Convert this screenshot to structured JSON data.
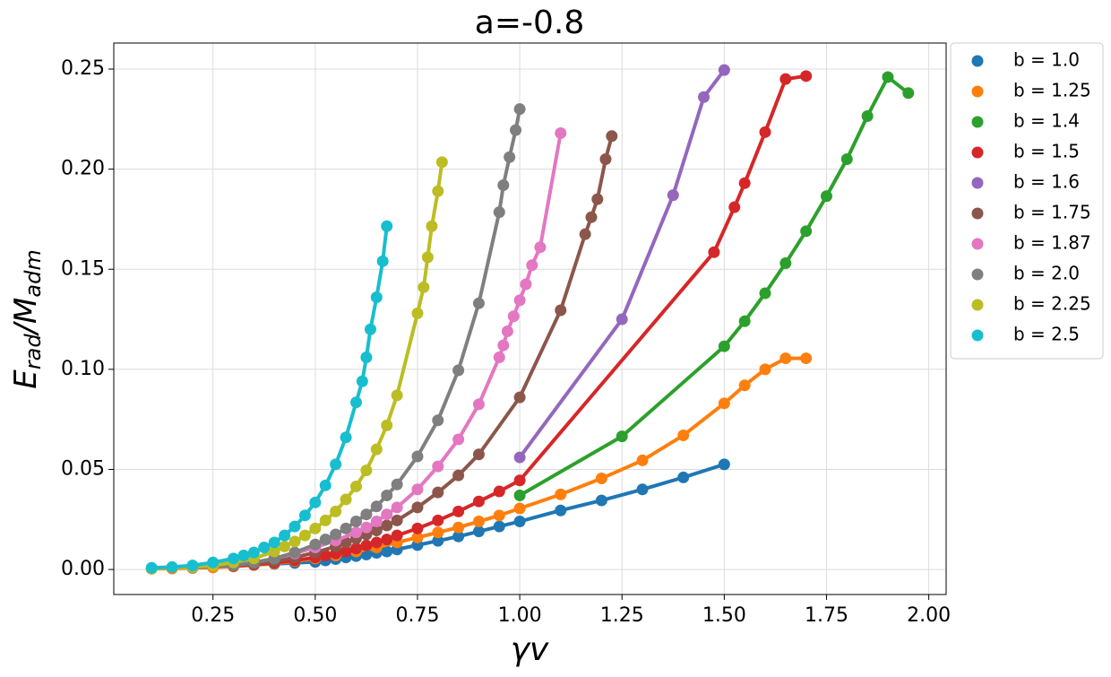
{
  "chart_data": {
    "type": "line",
    "title": "a=-0.8",
    "xlabel": "γv",
    "ylabel": [
      "E",
      "rad",
      "/M",
      "adm"
    ],
    "xlim": [
      0.0075,
      2.0425
    ],
    "ylim": [
      -0.0125,
      0.263
    ],
    "xticks": [
      0.25,
      {
        "value": 0.5,
        "label": "0.50"
      },
      0.75,
      {
        "value": 1.0,
        "label": "1.00"
      },
      1.25,
      {
        "value": 1.5,
        "label": "1.50"
      },
      1.75,
      {
        "value": 2.0,
        "label": "2.00"
      }
    ],
    "yticks": [
      {
        "value": 0,
        "label": "0.00"
      },
      0.05,
      {
        "value": 0.1,
        "label": "0.10"
      },
      0.15,
      {
        "value": 0.2,
        "label": "0.20"
      },
      0.25
    ],
    "grid": true,
    "legend": "outside-upper-right",
    "series": [
      {
        "name": "b = 1.0",
        "color": "#1f77b4",
        "x": [
          0.1,
          0.15,
          0.2,
          0.25,
          0.3,
          0.35,
          0.4,
          0.45,
          0.5,
          0.525,
          0.55,
          0.575,
          0.6,
          0.625,
          0.65,
          0.675,
          0.7,
          0.75,
          0.8,
          0.85,
          0.9,
          0.95,
          1.0,
          1.1,
          1.2,
          1.3,
          1.4,
          1.5
        ],
        "values": [
          0.0005,
          0.0008,
          0.0012,
          0.0016,
          0.002,
          0.0024,
          0.0028,
          0.0033,
          0.0038,
          0.0045,
          0.0052,
          0.006,
          0.0067,
          0.0075,
          0.0083,
          0.009,
          0.01,
          0.0122,
          0.0143,
          0.0165,
          0.019,
          0.0215,
          0.024,
          0.0295,
          0.0345,
          0.04,
          0.046,
          0.0525
        ]
      },
      {
        "name": "b = 1.25",
        "color": "#ff7f0e",
        "x": [
          0.1,
          0.15,
          0.2,
          0.25,
          0.3,
          0.35,
          0.4,
          0.45,
          0.5,
          0.55,
          0.6,
          0.65,
          0.7,
          0.75,
          0.8,
          0.85,
          0.9,
          0.95,
          1.0,
          1.1,
          1.2,
          1.3,
          1.4,
          1.5,
          1.55,
          1.6,
          1.65,
          1.7
        ],
        "values": [
          0.0003,
          0.0005,
          0.0007,
          0.001,
          0.0015,
          0.0022,
          0.003,
          0.0042,
          0.0055,
          0.007,
          0.009,
          0.011,
          0.0135,
          0.016,
          0.0185,
          0.021,
          0.024,
          0.027,
          0.0305,
          0.0375,
          0.0455,
          0.0545,
          0.067,
          0.083,
          0.092,
          0.1,
          0.1055,
          0.1055
        ]
      },
      {
        "name": "b = 1.4",
        "color": "#2ca02c",
        "x": [
          1.0,
          1.25,
          1.5,
          1.55,
          1.6,
          1.65,
          1.7,
          1.75,
          1.8,
          1.85,
          1.9,
          1.95
        ],
        "values": [
          0.037,
          0.0665,
          0.1115,
          0.124,
          0.138,
          0.153,
          0.169,
          0.1865,
          0.205,
          0.2265,
          0.246,
          0.238
        ]
      },
      {
        "name": "b = 1.5",
        "color": "#d62728",
        "x": [
          0.3,
          0.35,
          0.4,
          0.45,
          0.5,
          0.525,
          0.55,
          0.575,
          0.6,
          0.625,
          0.65,
          0.675,
          0.7,
          0.75,
          0.8,
          0.85,
          0.9,
          0.95,
          1.0,
          1.475,
          1.525,
          1.55,
          1.6,
          1.65,
          1.7
        ],
        "values": [
          0.0017,
          0.0024,
          0.0033,
          0.0045,
          0.006,
          0.007,
          0.008,
          0.009,
          0.0105,
          0.012,
          0.0135,
          0.015,
          0.017,
          0.0205,
          0.0245,
          0.029,
          0.034,
          0.039,
          0.0445,
          0.1585,
          0.181,
          0.193,
          0.2185,
          0.245,
          0.2465
        ]
      },
      {
        "name": "b = 1.6",
        "color": "#9467bd",
        "x": [
          1.0,
          1.25,
          1.375,
          1.45,
          1.5
        ],
        "values": [
          0.056,
          0.125,
          0.187,
          0.236,
          0.2495
        ]
      },
      {
        "name": "b = 1.75",
        "color": "#8c564b",
        "x": [
          0.2,
          0.3,
          0.35,
          0.4,
          0.45,
          0.5,
          0.55,
          0.575,
          0.6,
          0.625,
          0.65,
          0.675,
          0.7,
          0.75,
          0.8,
          0.85,
          0.9,
          1.0,
          1.1,
          1.16,
          1.175,
          1.19,
          1.21,
          1.225
        ],
        "values": [
          0.001,
          0.002,
          0.0028,
          0.004,
          0.006,
          0.0085,
          0.0115,
          0.0135,
          0.0155,
          0.0175,
          0.0195,
          0.022,
          0.0245,
          0.031,
          0.0385,
          0.047,
          0.0575,
          0.086,
          0.1295,
          0.1675,
          0.176,
          0.185,
          0.205,
          0.2165
        ]
      },
      {
        "name": "b = 1.87",
        "color": "#e377c2",
        "x": [
          0.3,
          0.35,
          0.4,
          0.45,
          0.5,
          0.55,
          0.6,
          0.625,
          0.65,
          0.675,
          0.7,
          0.75,
          0.8,
          0.85,
          0.9,
          0.95,
          0.96,
          0.97,
          0.985,
          1.0,
          1.015,
          1.03,
          1.05,
          1.1
        ],
        "values": [
          0.0022,
          0.0035,
          0.0055,
          0.008,
          0.011,
          0.0145,
          0.0185,
          0.021,
          0.024,
          0.0275,
          0.031,
          0.04,
          0.0515,
          0.065,
          0.0825,
          0.106,
          0.112,
          0.119,
          0.1265,
          0.1345,
          0.1425,
          0.152,
          0.161,
          0.218
        ]
      },
      {
        "name": "b = 2.0",
        "color": "#7f7f7f",
        "x": [
          0.2,
          0.3,
          0.35,
          0.4,
          0.45,
          0.5,
          0.525,
          0.55,
          0.575,
          0.6,
          0.625,
          0.65,
          0.675,
          0.7,
          0.75,
          0.8,
          0.85,
          0.9,
          0.95,
          0.96,
          0.975,
          0.99,
          1.0
        ],
        "values": [
          0.001,
          0.002,
          0.0035,
          0.0055,
          0.0085,
          0.0125,
          0.015,
          0.0175,
          0.0205,
          0.024,
          0.0275,
          0.0315,
          0.037,
          0.0425,
          0.0565,
          0.0745,
          0.0995,
          0.133,
          0.1785,
          0.192,
          0.206,
          0.2195,
          0.23
        ]
      },
      {
        "name": "b = 2.25",
        "color": "#bcbd22",
        "x": [
          0.1,
          0.2,
          0.25,
          0.3,
          0.35,
          0.4,
          0.425,
          0.45,
          0.475,
          0.5,
          0.525,
          0.55,
          0.575,
          0.6,
          0.625,
          0.65,
          0.675,
          0.7,
          0.75,
          0.765,
          0.775,
          0.785,
          0.8,
          0.81
        ],
        "values": [
          0.0005,
          0.0012,
          0.002,
          0.0035,
          0.0055,
          0.009,
          0.0115,
          0.014,
          0.017,
          0.0205,
          0.0245,
          0.029,
          0.035,
          0.0415,
          0.0495,
          0.06,
          0.072,
          0.087,
          0.128,
          0.141,
          0.156,
          0.1715,
          0.189,
          0.2035
        ]
      },
      {
        "name": "b = 2.5",
        "color": "#17becf",
        "x": [
          0.1,
          0.15,
          0.2,
          0.25,
          0.3,
          0.325,
          0.35,
          0.375,
          0.4,
          0.425,
          0.45,
          0.475,
          0.5,
          0.525,
          0.55,
          0.575,
          0.6,
          0.615,
          0.625,
          0.635,
          0.65,
          0.665,
          0.675
        ],
        "values": [
          0.0008,
          0.0012,
          0.002,
          0.0035,
          0.0055,
          0.007,
          0.0085,
          0.011,
          0.0135,
          0.017,
          0.0215,
          0.027,
          0.0335,
          0.042,
          0.0525,
          0.066,
          0.0835,
          0.094,
          0.106,
          0.12,
          0.136,
          0.154,
          0.1715
        ]
      }
    ]
  }
}
